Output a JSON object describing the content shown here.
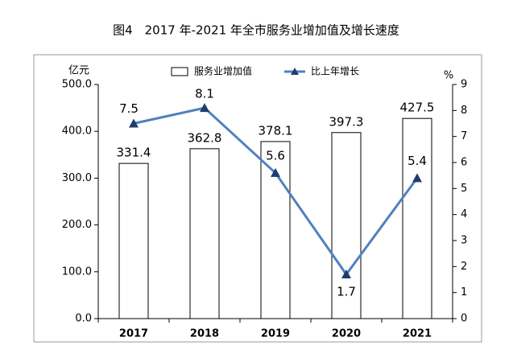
{
  "chart_data": {
    "type": "bar",
    "title": "图4　2017 年-2021 年全市服务业增加值及增长速度",
    "y_label": "亿元",
    "y2_label": "%",
    "categories": [
      "2017",
      "2018",
      "2019",
      "2020",
      "2021"
    ],
    "series": [
      {
        "name": "服务业增加值",
        "type": "bar",
        "color": "#ffffff",
        "values": [
          331.4,
          362.8,
          378.1,
          397.3,
          427.5
        ]
      },
      {
        "name": "比上年增长",
        "type": "line",
        "axis": "y2",
        "color": "#4f81bd",
        "values": [
          7.5,
          8.1,
          5.6,
          1.7,
          5.4
        ]
      }
    ],
    "ylim": [
      0,
      500
    ],
    "yticks": [
      {
        "value": 0,
        "label": "0.0"
      },
      {
        "value": 100,
        "label": "100.0"
      },
      {
        "value": 200,
        "label": "200.0"
      },
      {
        "value": 300,
        "label": "300.0"
      },
      {
        "value": 400,
        "label": "400.0"
      },
      {
        "value": 500,
        "label": "500.0"
      }
    ],
    "y2lim": [
      0,
      9
    ],
    "y2ticks": [
      0,
      1,
      2,
      3,
      4,
      5,
      6,
      7,
      8,
      9
    ],
    "legend": "top"
  }
}
